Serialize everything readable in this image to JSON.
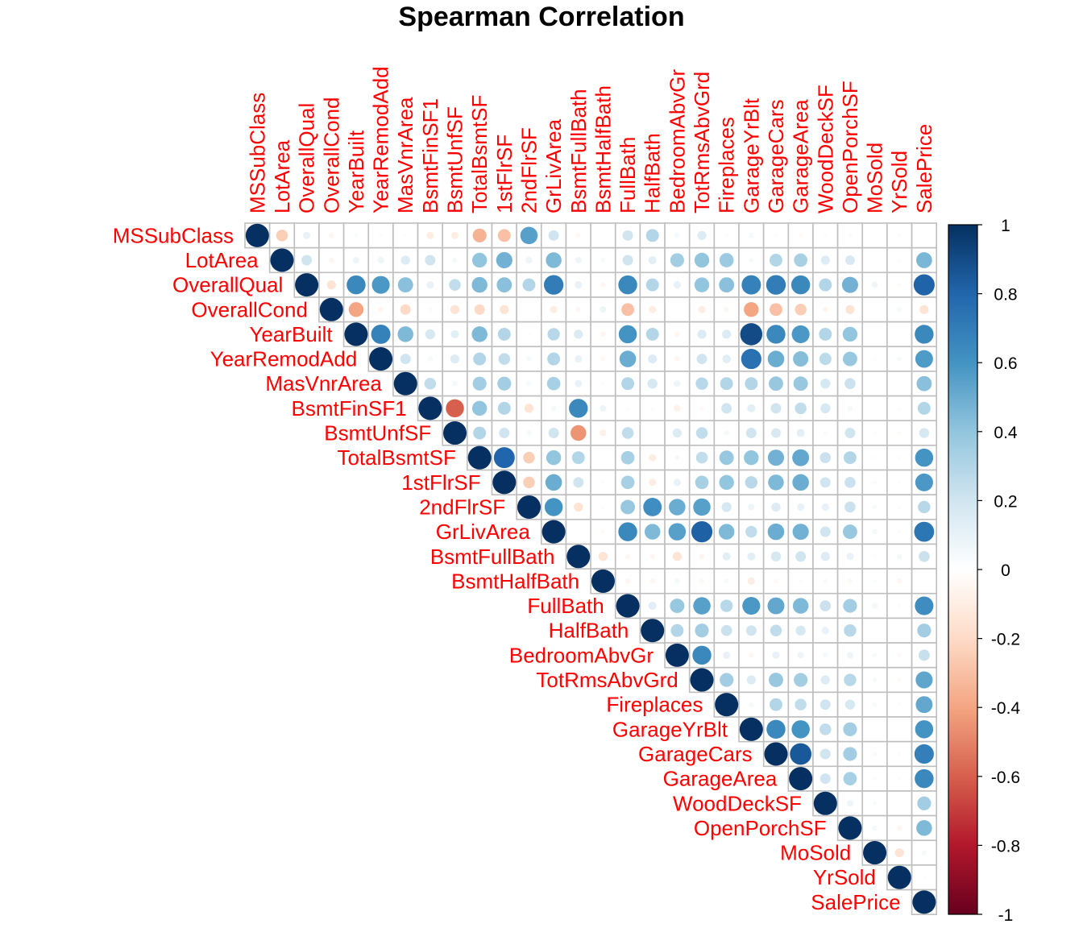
{
  "chart_data": {
    "type": "heatmap",
    "subtype": "correlation-matrix-upper-circles",
    "title": "Spearman  Correlation",
    "xlabel": "",
    "ylabel": "",
    "variables": [
      "MSSubClass",
      "LotArea",
      "OverallQual",
      "OverallCond",
      "YearBuilt",
      "YearRemodAdd",
      "MasVnrArea",
      "BsmtFinSF1",
      "BsmtUnfSF",
      "TotalBsmtSF",
      "1stFlrSF",
      "2ndFlrSF",
      "GrLivArea",
      "BsmtFullBath",
      "BsmtHalfBath",
      "FullBath",
      "HalfBath",
      "BedroomAbvGr",
      "TotRmsAbvGrd",
      "Fireplaces",
      "GarageYrBlt",
      "GarageCars",
      "GarageArea",
      "WoodDeckSF",
      "OpenPorchSF",
      "MoSold",
      "YrSold",
      "SalePrice"
    ],
    "matrix": [
      [
        1,
        -0.25,
        0.1,
        -0.05,
        0.03,
        0.02,
        0.02,
        -0.1,
        -0.1,
        -0.35,
        -0.3,
        0.55,
        0.2,
        -0.04,
        0.0,
        0.2,
        0.3,
        0.05,
        0.15,
        0.02,
        0.05,
        0.02,
        -0.03,
        0.02,
        0.03,
        0.01,
        -0.02,
        0.01
      ],
      [
        null,
        1,
        0.2,
        -0.05,
        0.08,
        0.08,
        0.15,
        0.2,
        0.05,
        0.4,
        0.48,
        0.08,
        0.45,
        0.08,
        0.04,
        0.2,
        0.12,
        0.35,
        0.4,
        0.37,
        0.04,
        0.3,
        0.33,
        0.15,
        0.17,
        0.01,
        -0.02,
        0.46
      ],
      [
        null,
        null,
        1,
        -0.15,
        0.65,
        0.58,
        0.42,
        0.1,
        0.25,
        0.45,
        0.42,
        0.3,
        0.7,
        0.1,
        -0.05,
        0.65,
        0.3,
        0.1,
        0.4,
        0.42,
        0.68,
        0.7,
        0.65,
        0.3,
        0.48,
        0.07,
        -0.03,
        0.81
      ],
      [
        null,
        null,
        null,
        1,
        -0.4,
        -0.05,
        -0.2,
        -0.03,
        -0.15,
        -0.2,
        -0.15,
        0.0,
        -0.1,
        -0.05,
        0.08,
        -0.3,
        -0.1,
        0.0,
        -0.1,
        -0.05,
        -0.4,
        -0.3,
        -0.25,
        -0.05,
        -0.15,
        0.0,
        0.05,
        -0.15
      ],
      [
        null,
        null,
        null,
        null,
        1,
        0.68,
        0.45,
        0.18,
        0.12,
        0.45,
        0.3,
        0.02,
        0.28,
        0.15,
        -0.05,
        0.6,
        0.3,
        -0.05,
        0.15,
        0.15,
        0.9,
        0.65,
        0.58,
        0.3,
        0.4,
        0.01,
        -0.01,
        0.65
      ],
      [
        null,
        null,
        null,
        null,
        null,
        1,
        0.2,
        0.05,
        0.15,
        0.3,
        0.25,
        0.05,
        0.3,
        0.1,
        -0.04,
        0.5,
        0.15,
        -0.05,
        0.2,
        0.13,
        0.75,
        0.5,
        0.43,
        0.27,
        0.38,
        0.02,
        0.04,
        0.57
      ],
      [
        null,
        null,
        null,
        null,
        null,
        null,
        1,
        0.25,
        0.05,
        0.35,
        0.35,
        0.05,
        0.33,
        0.1,
        0.02,
        0.3,
        0.18,
        0.08,
        0.28,
        0.3,
        0.3,
        0.38,
        0.38,
        0.18,
        0.22,
        0.0,
        0.0,
        0.42
      ],
      [
        null,
        null,
        null,
        null,
        null,
        null,
        null,
        1,
        -0.6,
        0.4,
        0.3,
        -0.15,
        0.05,
        0.65,
        0.08,
        0.02,
        0.02,
        -0.08,
        -0.04,
        0.2,
        0.12,
        0.2,
        0.25,
        0.18,
        0.05,
        0.01,
        0.02,
        0.3
      ],
      [
        null,
        null,
        null,
        null,
        null,
        null,
        null,
        null,
        1,
        0.3,
        0.2,
        0.05,
        0.2,
        -0.45,
        -0.08,
        0.25,
        0.0,
        0.15,
        0.25,
        0.05,
        0.2,
        0.17,
        0.12,
        -0.03,
        0.2,
        0.02,
        -0.03,
        0.18
      ],
      [
        null,
        null,
        null,
        null,
        null,
        null,
        null,
        null,
        null,
        1,
        0.8,
        -0.25,
        0.4,
        0.3,
        0.0,
        0.33,
        -0.1,
        0.05,
        0.25,
        0.38,
        0.4,
        0.48,
        0.52,
        0.22,
        0.3,
        0.02,
        -0.02,
        0.6
      ],
      [
        null,
        null,
        null,
        null,
        null,
        null,
        null,
        null,
        null,
        null,
        1,
        -0.25,
        0.5,
        0.2,
        0.02,
        0.33,
        -0.1,
        0.1,
        0.33,
        0.4,
        0.28,
        0.45,
        0.5,
        0.2,
        0.22,
        0.03,
        -0.02,
        0.58
      ],
      [
        null,
        null,
        null,
        null,
        null,
        null,
        null,
        null,
        null,
        null,
        null,
        1,
        0.6,
        -0.15,
        -0.02,
        0.38,
        0.62,
        0.5,
        0.55,
        0.18,
        0.08,
        0.15,
        0.1,
        0.1,
        0.22,
        0.04,
        -0.02,
        0.28
      ],
      [
        null,
        null,
        null,
        null,
        null,
        null,
        null,
        null,
        null,
        null,
        null,
        null,
        1,
        0.0,
        -0.03,
        0.65,
        0.45,
        0.55,
        0.82,
        0.45,
        0.25,
        0.5,
        0.48,
        0.2,
        0.38,
        0.05,
        -0.02,
        0.73
      ],
      [
        null,
        null,
        null,
        null,
        null,
        null,
        null,
        null,
        null,
        null,
        null,
        null,
        null,
        1,
        -0.15,
        -0.05,
        -0.05,
        -0.15,
        -0.05,
        0.12,
        0.12,
        0.18,
        0.2,
        0.15,
        0.1,
        0.02,
        0.05,
        0.22
      ],
      [
        null,
        null,
        null,
        null,
        null,
        null,
        null,
        null,
        null,
        null,
        null,
        null,
        null,
        null,
        1,
        -0.05,
        -0.05,
        0.05,
        -0.04,
        0.04,
        -0.1,
        -0.04,
        -0.02,
        0.04,
        -0.04,
        0.03,
        -0.05,
        -0.01
      ],
      [
        null,
        null,
        null,
        null,
        null,
        null,
        null,
        null,
        null,
        null,
        null,
        null,
        null,
        null,
        null,
        1,
        0.12,
        0.38,
        0.55,
        0.28,
        0.58,
        0.52,
        0.45,
        0.22,
        0.35,
        0.06,
        -0.02,
        0.63
      ],
      [
        null,
        null,
        null,
        null,
        null,
        null,
        null,
        null,
        null,
        null,
        null,
        null,
        null,
        null,
        null,
        null,
        1,
        0.3,
        0.35,
        0.22,
        0.2,
        0.25,
        0.18,
        0.1,
        0.28,
        0.01,
        -0.01,
        0.35
      ],
      [
        null,
        null,
        null,
        null,
        null,
        null,
        null,
        null,
        null,
        null,
        null,
        null,
        null,
        null,
        null,
        null,
        null,
        1,
        0.65,
        0.1,
        -0.05,
        0.1,
        0.08,
        0.05,
        0.08,
        0.04,
        -0.03,
        0.23
      ],
      [
        null,
        null,
        null,
        null,
        null,
        null,
        null,
        null,
        null,
        null,
        null,
        null,
        null,
        null,
        null,
        null,
        null,
        null,
        1,
        0.35,
        0.15,
        0.38,
        0.35,
        0.15,
        0.28,
        0.04,
        -0.03,
        0.53
      ],
      [
        null,
        null,
        null,
        null,
        null,
        null,
        null,
        null,
        null,
        null,
        null,
        null,
        null,
        null,
        null,
        null,
        null,
        null,
        null,
        1,
        0.05,
        0.3,
        0.25,
        0.2,
        0.18,
        0.04,
        -0.02,
        0.52
      ],
      [
        null,
        null,
        null,
        null,
        null,
        null,
        null,
        null,
        null,
        null,
        null,
        null,
        null,
        null,
        null,
        null,
        null,
        null,
        null,
        null,
        1,
        0.65,
        0.6,
        0.25,
        0.35,
        0.01,
        0.0,
        0.6
      ],
      [
        null,
        null,
        null,
        null,
        null,
        null,
        null,
        null,
        null,
        null,
        null,
        null,
        null,
        null,
        null,
        null,
        null,
        null,
        null,
        null,
        null,
        1,
        0.85,
        0.2,
        0.35,
        0.04,
        -0.02,
        0.69
      ],
      [
        null,
        null,
        null,
        null,
        null,
        null,
        null,
        null,
        null,
        null,
        null,
        null,
        null,
        null,
        null,
        null,
        null,
        null,
        null,
        null,
        null,
        null,
        1,
        0.2,
        0.33,
        0.03,
        -0.02,
        0.65
      ],
      [
        null,
        null,
        null,
        null,
        null,
        null,
        null,
        null,
        null,
        null,
        null,
        null,
        null,
        null,
        null,
        null,
        null,
        null,
        null,
        null,
        null,
        null,
        null,
        1,
        0.08,
        0.03,
        -0.01,
        0.35
      ],
      [
        null,
        null,
        null,
        null,
        null,
        null,
        null,
        null,
        null,
        null,
        null,
        null,
        null,
        null,
        null,
        null,
        null,
        null,
        null,
        null,
        null,
        null,
        null,
        null,
        1,
        0.05,
        -0.05,
        0.45
      ],
      [
        null,
        null,
        null,
        null,
        null,
        null,
        null,
        null,
        null,
        null,
        null,
        null,
        null,
        null,
        null,
        null,
        null,
        null,
        null,
        null,
        null,
        null,
        null,
        null,
        null,
        1,
        -0.15,
        0.05
      ],
      [
        null,
        null,
        null,
        null,
        null,
        null,
        null,
        null,
        null,
        null,
        null,
        null,
        null,
        null,
        null,
        null,
        null,
        null,
        null,
        null,
        null,
        null,
        null,
        null,
        null,
        null,
        1,
        -0.02
      ],
      [
        null,
        null,
        null,
        null,
        null,
        null,
        null,
        null,
        null,
        null,
        null,
        null,
        null,
        null,
        null,
        null,
        null,
        null,
        null,
        null,
        null,
        null,
        null,
        null,
        null,
        null,
        null,
        1
      ]
    ],
    "colorbar": {
      "range": [
        -1,
        1
      ],
      "ticks": [
        "1",
        "0.8",
        "0.6",
        "0.4",
        "0.2",
        "0",
        "-0.2",
        "-0.4",
        "-0.6",
        "-0.8",
        "-1"
      ],
      "tick_values": [
        1,
        0.8,
        0.6,
        0.4,
        0.2,
        0,
        -0.2,
        -0.4,
        -0.6,
        -0.8,
        -1
      ],
      "placement": "right",
      "palette": [
        "#67001F",
        "#B2182B",
        "#D6604D",
        "#F4A582",
        "#FDDBC7",
        "#FFFFFF",
        "#D1E5F0",
        "#92C5DE",
        "#4393C3",
        "#2166AC",
        "#053061"
      ]
    },
    "label_color": "#FF0000",
    "grid": true,
    "grid_color": "#BEBEBE"
  }
}
